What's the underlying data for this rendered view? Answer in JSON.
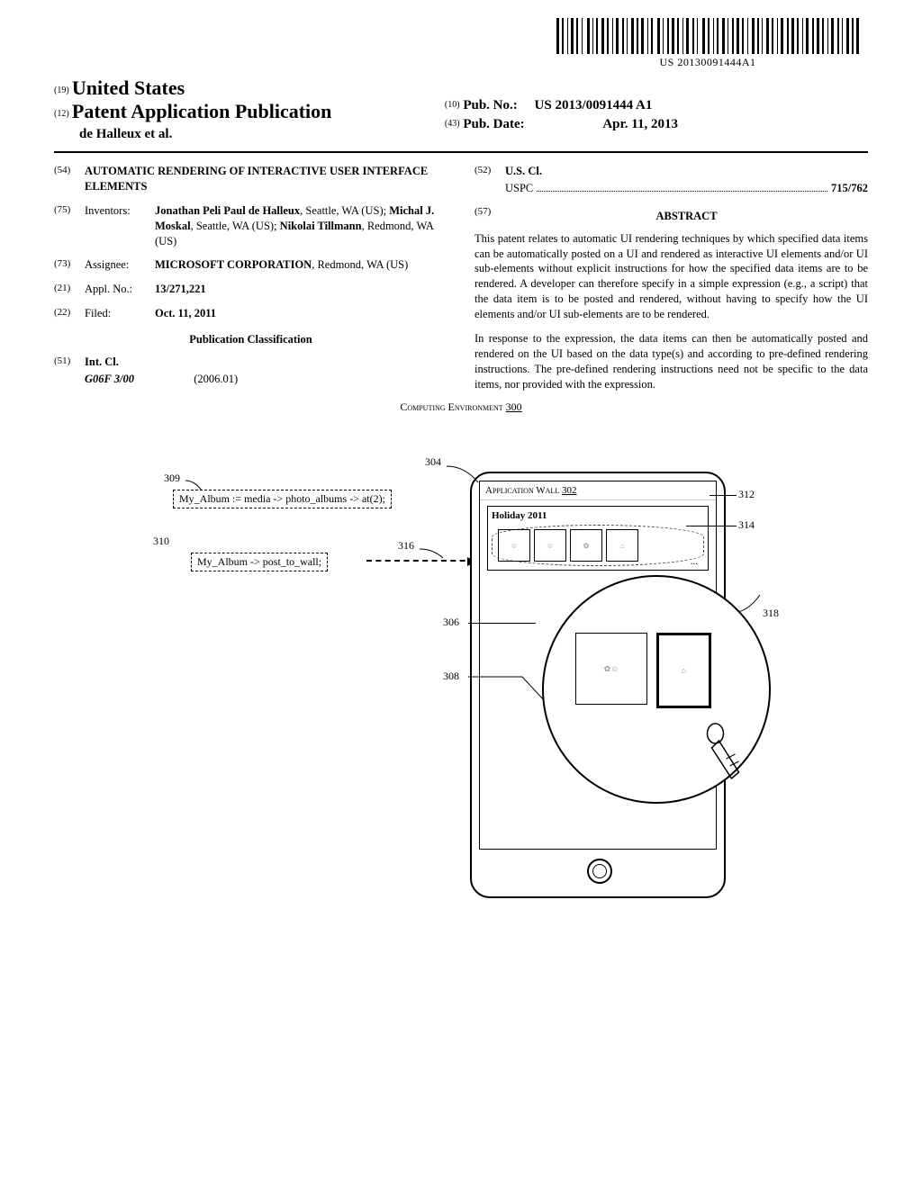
{
  "barcode_text": "US 20130091444A1",
  "header": {
    "country_prefix": "(19)",
    "country": "United States",
    "pub_prefix": "(12)",
    "pub_title": "Patent Application Publication",
    "inventors_head": "de Halleux et al.",
    "pubno_prefix": "(10)",
    "pubno_label": "Pub. No.:",
    "pubno": "US 2013/0091444 A1",
    "pubdate_prefix": "(43)",
    "pubdate_label": "Pub. Date:",
    "pubdate": "Apr. 11, 2013"
  },
  "left_col": {
    "f54_num": "(54)",
    "f54_title": "AUTOMATIC RENDERING OF INTERACTIVE USER INTERFACE ELEMENTS",
    "f75_num": "(75)",
    "f75_label": "Inventors:",
    "f75_val_html": "Jonathan Peli Paul de Halleux|, Seattle, WA (US); |Michal J. Moskal|, Seattle, WA (US); |Nikolai Tillmann|, Redmond, WA (US)",
    "f73_num": "(73)",
    "f73_label": "Assignee:",
    "f73_val": "MICROSOFT CORPORATION",
    "f73_rest": ", Redmond, WA (US)",
    "f21_num": "(21)",
    "f21_label": "Appl. No.:",
    "f21_val": "13/271,221",
    "f22_num": "(22)",
    "f22_label": "Filed:",
    "f22_val": "Oct. 11, 2011",
    "pub_class": "Publication Classification",
    "f51_num": "(51)",
    "f51_label": "Int. Cl.",
    "f51_code": "G06F 3/00",
    "f51_year": "(2006.01)"
  },
  "right_col": {
    "f52_num": "(52)",
    "f52_label": "U.S. Cl.",
    "f52_uspc_label": "USPC",
    "f52_uspc_val": "715/762",
    "f57_num": "(57)",
    "f57_head": "ABSTRACT",
    "abstract_p1": "This patent relates to automatic UI rendering techniques by which specified data items can be automatically posted on a UI and rendered as interactive UI elements and/or UI sub-elements without explicit instructions for how the specified data items are to be rendered. A developer can therefore specify in a simple expression (e.g., a script) that the data item is to be posted and rendered, without having to specify how the UI elements and/or UI sub-elements are to be rendered.",
    "abstract_p2": "In response to the expression, the data items can then be automatically posted and rendered on the UI based on the data type(s) and according to pre-defined rendering instructions. The pre-defined rendering instructions need not be specific to the data items, nor provided with the expression."
  },
  "figure": {
    "caption": "Computing Environment",
    "caption_num": "300",
    "app_wall": "Application Wall",
    "app_wall_num": "302",
    "album_title": "Holiday 2011",
    "code1": "My_Album := media -> photo_albums -> at(2);",
    "code2": "My_Album -> post_to_wall;",
    "labels": {
      "l304": "304",
      "l309": "309",
      "l310": "310",
      "l312": "312",
      "l314": "314",
      "l316": "316",
      "l318": "318",
      "l306": "306",
      "l308": "308"
    }
  }
}
